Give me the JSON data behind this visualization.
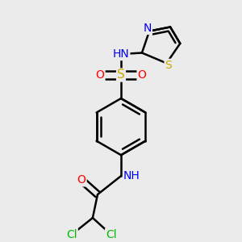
{
  "background_color": "#ebebeb",
  "atom_colors": {
    "C": "#000000",
    "H": "#606060",
    "N": "#0000ff",
    "O": "#ff0000",
    "S_sulfonyl": "#ccaa00",
    "S_thiazole": "#ccaa00",
    "Cl": "#00bb00"
  },
  "bond_color": "#000000",
  "bond_width": 1.8,
  "font_size": 10,
  "figsize": [
    3.0,
    3.0
  ],
  "dpi": 100,
  "xlim": [
    0.05,
    0.95
  ],
  "ylim": [
    0.02,
    0.98
  ]
}
